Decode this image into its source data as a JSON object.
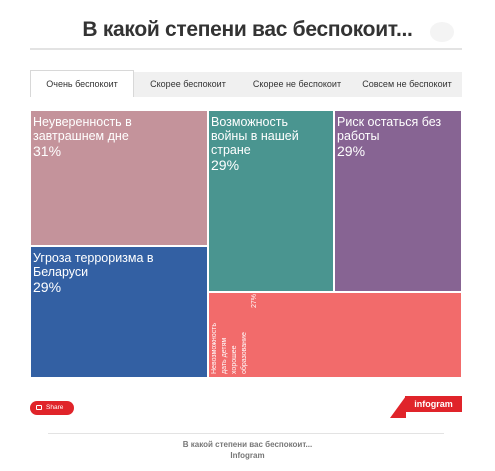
{
  "title": "В какой степени вас беспокоит...",
  "tabs": [
    {
      "label": "Очень беспокоит",
      "active": true
    },
    {
      "label": "Скорее беспокоит",
      "active": false
    },
    {
      "label": "Скорее не беспокоит",
      "active": false
    },
    {
      "label": "Совсем не беспокоит",
      "active": false
    }
  ],
  "chart_data": {
    "type": "treemap",
    "items": [
      {
        "label": "Неуверенность в завтрашнем дне",
        "value": 31,
        "value_label": "31%",
        "color": "#c4939b"
      },
      {
        "label": "Возможность войны в нашей стране",
        "value": 29,
        "value_label": "29%",
        "color": "#4a9590"
      },
      {
        "label": "Риск остаться без работы",
        "value": 29,
        "value_label": "29%",
        "color": "#876493"
      },
      {
        "label": "Угроза терроризма в Беларуси",
        "value": 29,
        "value_label": "29%",
        "color": "#3360a3"
      },
      {
        "label": "Невозможность дать детям хорошее образование",
        "value": 27,
        "value_label": "27%",
        "color": "#f26b6b"
      }
    ]
  },
  "share": {
    "label": "Share",
    "icon": "share-icon"
  },
  "brand": {
    "label": "infogram",
    "color": "#e0242a"
  },
  "footer": {
    "title": "В какой степени вас беспокоит...",
    "brand": "Infogram"
  }
}
